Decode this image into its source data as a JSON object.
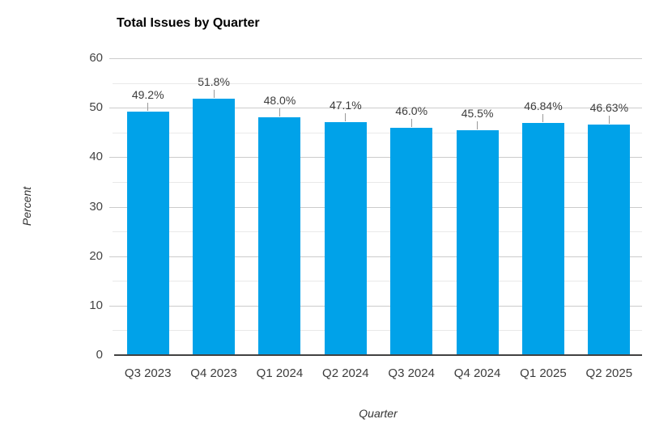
{
  "chart_data": {
    "type": "bar",
    "title": "Total Issues by Quarter",
    "xlabel": "Quarter",
    "ylabel": "Percent",
    "categories": [
      "Q3 2023",
      "Q4 2023",
      "Q1 2024",
      "Q2 2024",
      "Q3 2024",
      "Q4 2024",
      "Q1 2025",
      "Q2 2025"
    ],
    "values": [
      49.2,
      51.8,
      48.0,
      47.1,
      46.0,
      45.5,
      46.84,
      46.63
    ],
    "value_labels": [
      "49.2%",
      "51.8%",
      "48.0%",
      "47.1%",
      "46.0%",
      "45.5%",
      "46.84%",
      "46.63%"
    ],
    "ylim": [
      0,
      60
    ],
    "y_major_ticks": [
      0,
      10,
      20,
      30,
      40,
      50,
      60
    ],
    "y_minor_ticks": [
      5,
      15,
      25,
      35,
      45,
      55
    ],
    "grid": "major+minor",
    "legend": "none",
    "colors": {
      "bar": "#00a2e9",
      "grid_major": "#cccccc",
      "grid_minor": "#e9e9e9",
      "axis_line": "#424242",
      "leader_line": "#999999",
      "background": "#ffffff"
    }
  }
}
